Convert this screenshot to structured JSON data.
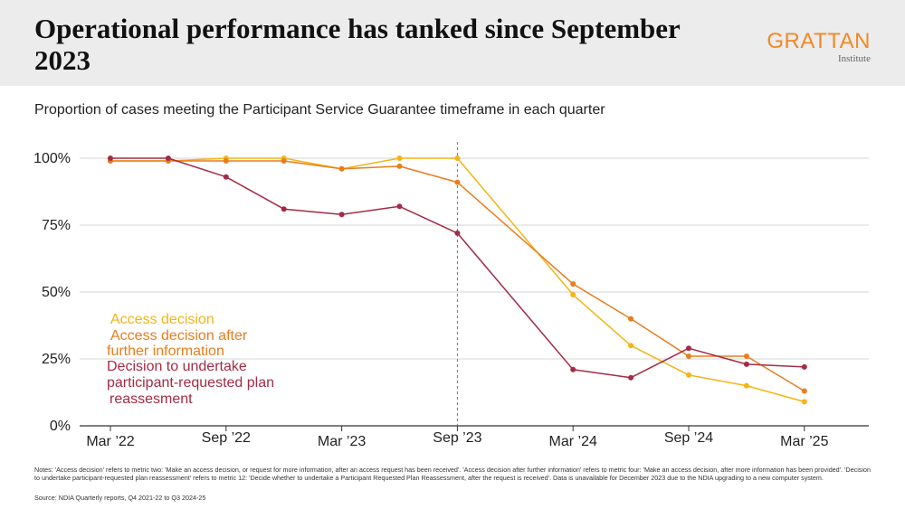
{
  "header": {
    "title": "Operational performance has tanked since September 2023",
    "logo_main": "GRATTAN",
    "logo_sub": "Institute"
  },
  "subtitle": "Proportion of cases meeting the Participant Service Guarantee timeframe in each quarter",
  "colors": {
    "access_decision": "#f5b415",
    "access_after_info": "#e87d1e",
    "plan_reassessment": "#a22b45",
    "gridline": "#d4d4d4",
    "axis": "#333333",
    "marker_line": "#777777"
  },
  "chart_data": {
    "type": "line",
    "categories": [
      "Mar '22",
      "Jun '22",
      "Sep '22",
      "Dec '22",
      "Mar '23",
      "Jun '23",
      "Sep '23",
      "Dec '23",
      "Mar '24",
      "Jun '24",
      "Sep '24",
      "Dec '24",
      "Mar '25"
    ],
    "x_tick_labels": [
      "Mar ’22",
      "Sep ’22",
      "Mar ’23",
      "Sep ’23",
      "Mar ’24",
      "Sep ’24",
      "Mar ’25"
    ],
    "y_tick_labels": [
      "0%",
      "25%",
      "50%",
      "75%",
      "100%"
    ],
    "ylim": [
      0,
      100
    ],
    "y_ticks": [
      0,
      25,
      50,
      75,
      100
    ],
    "marker_at": "Sep '23",
    "series": [
      {
        "name": "Access decision",
        "legend_lines": [
          "Access decision"
        ],
        "color_key": "access_decision",
        "values": [
          99,
          99,
          100,
          100,
          96,
          100,
          100,
          null,
          49,
          30,
          19,
          15,
          9
        ]
      },
      {
        "name": "Access decision after further information",
        "legend_lines": [
          "Access decision after",
          "further information"
        ],
        "color_key": "access_after_info",
        "values": [
          99,
          99,
          99,
          99,
          96,
          97,
          91,
          null,
          53,
          40,
          26,
          26,
          13
        ]
      },
      {
        "name": "Decision to undertake participant-requested plan reassesment",
        "legend_lines": [
          "Decision to undertake",
          "participant-requested plan",
          "reassesment"
        ],
        "color_key": "plan_reassessment",
        "values": [
          100,
          100,
          93,
          81,
          79,
          82,
          72,
          null,
          21,
          18,
          29,
          23,
          22
        ]
      }
    ]
  },
  "notes": "Notes: 'Access decision' refers to metric two: 'Make an access decision, or request for more information, after an access request has been received'. 'Access decision after further information' refers to metric four: 'Make an access decision, after more information has been provided'. 'Decision to undertake participant-requested plan reassessment' refers to metric 12: 'Decide whether to undertake a Participant Requested Plan Reassessment, after the request is received'. Data is unavailable for December 2023 due to the NDIA upgrading to a new computer system.",
  "source": "Source: NDIA Quarterly reports, Q4 2021-22 to Q3 2024-25"
}
